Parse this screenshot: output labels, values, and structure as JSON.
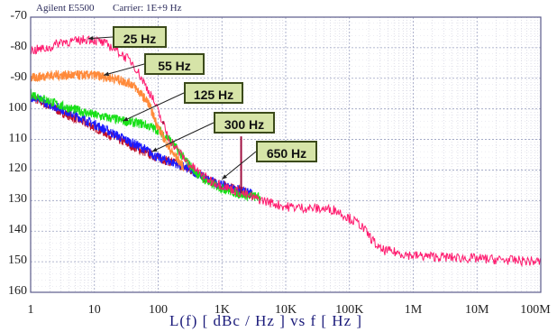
{
  "header": {
    "instrument": "Agilent E5500",
    "carrier": "Carrier: 1E+9 Hz"
  },
  "chart_data": {
    "type": "line",
    "xlabel": "L(f)  [ dBc / Hz ]  vs  f  [ Hz ]",
    "ylabel": "",
    "x_scale": "log",
    "xlim": [
      1,
      100000000
    ],
    "ylim": [
      -160,
      -70
    ],
    "x_ticks": [
      {
        "value": 1,
        "label": "1"
      },
      {
        "value": 10,
        "label": "10"
      },
      {
        "value": 100,
        "label": "100"
      },
      {
        "value": 1000,
        "label": "1K"
      },
      {
        "value": 10000,
        "label": "10K"
      },
      {
        "value": 100000,
        "label": "100K"
      },
      {
        "value": 1000000,
        "label": "1M"
      },
      {
        "value": 10000000,
        "label": "10M"
      },
      {
        "value": 100000000,
        "label": "100M"
      }
    ],
    "y_ticks": [
      {
        "value": -70,
        "label": "-70"
      },
      {
        "value": -80,
        "label": "-80"
      },
      {
        "value": -90,
        "label": "-90"
      },
      {
        "value": -100,
        "label": "100"
      },
      {
        "value": -110,
        "label": "110"
      },
      {
        "value": -120,
        "label": "120"
      },
      {
        "value": -130,
        "label": "130"
      },
      {
        "value": -140,
        "label": "140"
      },
      {
        "value": -150,
        "label": "150"
      },
      {
        "value": -160,
        "label": "160"
      }
    ],
    "grid": true,
    "series": [
      {
        "name": "25 Hz",
        "color": "#ff1a6e",
        "x": [
          1,
          2,
          3,
          5,
          8,
          12,
          20,
          40,
          80,
          150,
          300,
          600,
          1000,
          3000,
          10000,
          60000,
          150000,
          300000,
          1000000,
          10000000,
          100000000
        ],
        "y": [
          -81,
          -80,
          -78,
          -78,
          -77,
          -78,
          -80,
          -85,
          -96,
          -110,
          -118,
          -123,
          -125,
          -129,
          -132,
          -133,
          -138,
          -146,
          -148,
          -149,
          -150
        ]
      },
      {
        "name": "55 Hz",
        "color": "#ff8a3a",
        "x": [
          1,
          2,
          5,
          10,
          20,
          40,
          70,
          100,
          150,
          250
        ],
        "y": [
          -90,
          -89,
          -89,
          -89,
          -90,
          -92,
          -98,
          -106,
          -113,
          -119
        ]
      },
      {
        "name": "125 Hz",
        "color": "#18e018",
        "x": [
          1,
          3,
          10,
          30,
          60,
          100,
          150,
          250,
          400,
          600,
          1000,
          2000,
          4000
        ],
        "y": [
          -95,
          -99,
          -102,
          -104,
          -105,
          -107,
          -110,
          -116,
          -121,
          -124,
          -126,
          -128,
          -129
        ]
      },
      {
        "name": "300 Hz",
        "color": "#1a1aff",
        "x": [
          1,
          3,
          10,
          30,
          60,
          100,
          200,
          400,
          700,
          1000,
          3000
        ],
        "y": [
          -96,
          -100,
          -105,
          -110,
          -113,
          -116,
          -118,
          -121,
          -124,
          -125,
          -128
        ]
      },
      {
        "name": "650 Hz",
        "color": "#c0102a",
        "x": [
          1,
          3,
          10,
          30,
          60,
          100,
          200,
          400,
          700,
          1000,
          3000
        ],
        "y": [
          -96,
          -101,
          -106,
          -111,
          -114,
          -116,
          -118,
          -121,
          -124,
          -125,
          -128
        ]
      }
    ],
    "spurs": [
      {
        "x": 120,
        "y_top": -104,
        "color": "#a01040"
      },
      {
        "x": 2000,
        "y_top": -109,
        "color": "#a01040"
      }
    ],
    "annotations": [
      {
        "text": "25 Hz",
        "target_x": 8,
        "target_y": -77
      },
      {
        "text": "55 Hz",
        "target_x": 14,
        "target_y": -89
      },
      {
        "text": "125 Hz",
        "target_x": 28,
        "target_y": -104
      },
      {
        "text": "300 Hz",
        "target_x": 80,
        "target_y": -114
      },
      {
        "text": "650 Hz",
        "target_x": 1000,
        "target_y": -123
      }
    ]
  }
}
